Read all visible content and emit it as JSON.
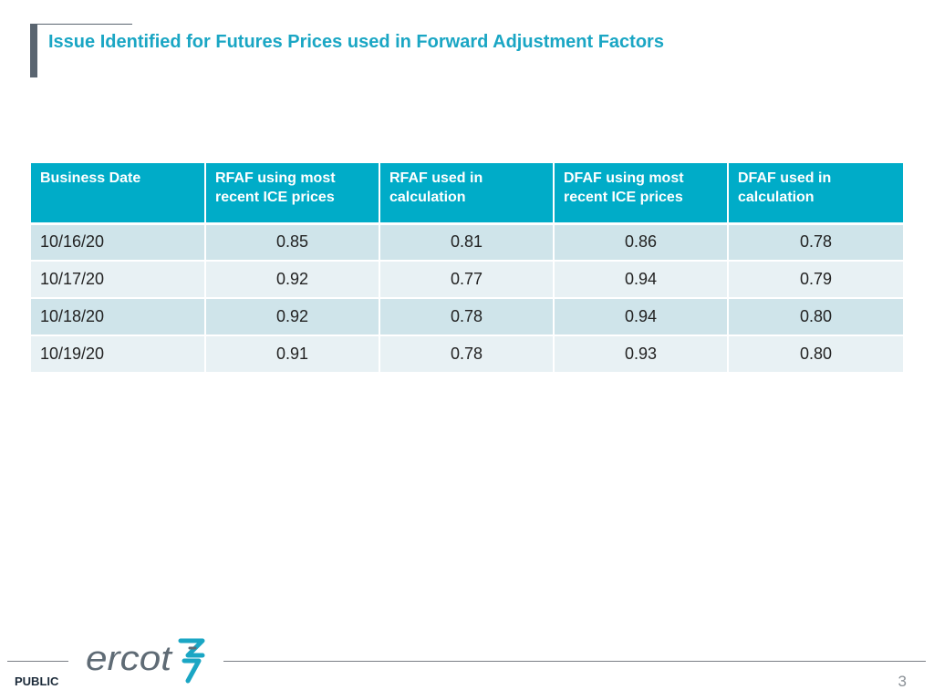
{
  "slide": {
    "title": "Issue Identified for Futures Prices used in Forward Adjustment Factors",
    "accent_color": "#1aa6c4",
    "header_color": "#00acc8"
  },
  "table": {
    "headers": [
      "Business Date",
      "RFAF using most recent ICE prices",
      "RFAF used in calculation",
      "DFAF using most recent ICE prices",
      "DFAF used in calculation"
    ],
    "rows": [
      [
        "10/16/20",
        "0.85",
        "0.81",
        "0.86",
        "0.78"
      ],
      [
        "10/17/20",
        "0.92",
        "0.77",
        "0.94",
        "0.79"
      ],
      [
        "10/18/20",
        "0.92",
        "0.78",
        "0.94",
        "0.80"
      ],
      [
        "10/19/20",
        "0.91",
        "0.78",
        "0.93",
        "0.80"
      ]
    ]
  },
  "footer": {
    "logo_text": "ercot",
    "classification": "PUBLIC",
    "page_number": "3"
  }
}
